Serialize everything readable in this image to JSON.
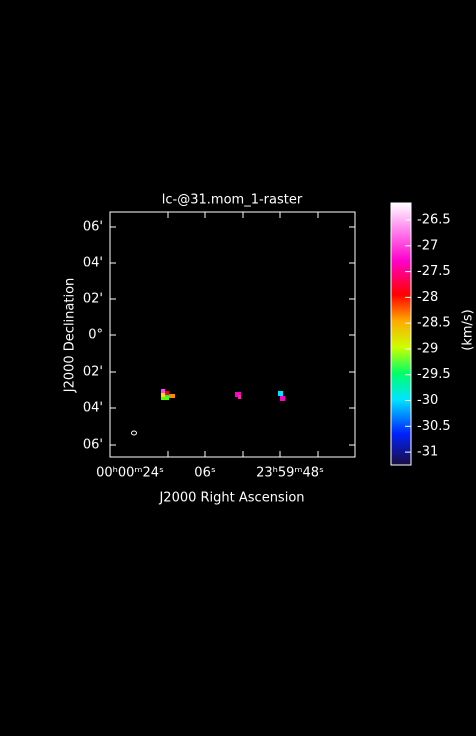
{
  "title": "lc-@31.mom_1-raster",
  "x_axis": {
    "label": "J2000 Right Ascension",
    "ticks": [
      "00ʰ00ᵐ24ˢ",
      "06ˢ",
      "23ʰ59ᵐ48ˢ"
    ]
  },
  "y_axis": {
    "label": "J2000 Declination",
    "ticks": [
      "06'",
      "04'",
      "02'",
      "0°",
      "02'",
      "04'",
      "06'"
    ]
  },
  "colorbar": {
    "unit": "(km/s)",
    "lim": [
      -31.25,
      -26.17
    ],
    "ticks": [
      -26.5,
      -27,
      -27.5,
      -28,
      -28.5,
      -29,
      -29.5,
      -30,
      -30.5,
      -31
    ]
  }
}
